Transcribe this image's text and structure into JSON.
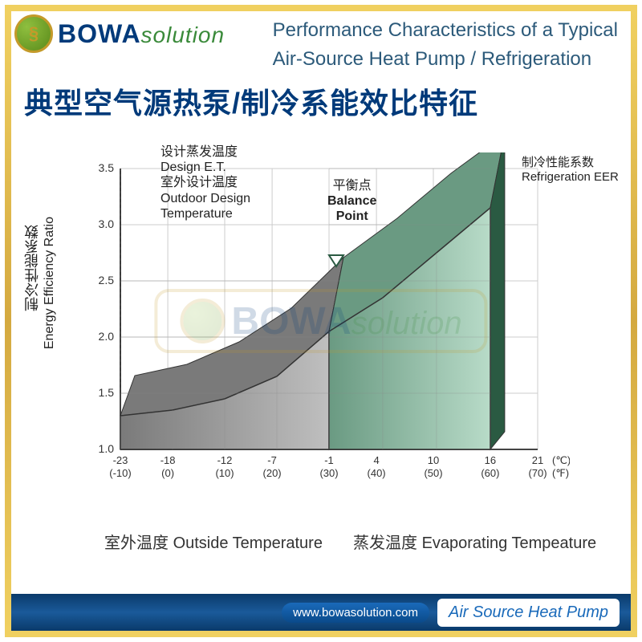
{
  "logo": {
    "brand_a": "BOWA",
    "brand_b": "solution",
    "symbol": "§"
  },
  "header": {
    "en_line1": "Performance Characteristics of a Typical",
    "en_line2": "Air-Source Heat Pump / Refrigeration",
    "cn_title": "典型空气源热泵/制冷系能效比特征"
  },
  "chart": {
    "type": "3d-area",
    "background_color": "#ffffff",
    "grid_color": "#cccccc",
    "axis_color": "#444444",
    "ylabel_cn": "制冷性能系数",
    "ylabel_en": "Energy Efficiency Ratio",
    "ylim": [
      1.0,
      3.5
    ],
    "yticks": [
      1.0,
      1.5,
      2.0,
      2.5,
      3.0,
      3.5
    ],
    "xticks_c": [
      -23,
      -18,
      -12,
      -7,
      -1,
      4,
      10,
      16,
      21
    ],
    "xticks_f": [
      "(-10)",
      "(0)",
      "(10)",
      "(20)",
      "(30)",
      "(40)",
      "(50)",
      "(60)",
      "(70)"
    ],
    "x_unit_c": "(℃)",
    "x_unit_f": "(℉)",
    "series": [
      {
        "name": "left-bar",
        "x_range": [
          -23,
          -1
        ],
        "values": [
          1.3,
          1.35,
          1.45,
          1.65,
          2.05
        ],
        "top_values": [
          1.5,
          1.6,
          1.8,
          2.1,
          2.55
        ],
        "face_color": "#bfbfbf",
        "face_color_dark": "#7a7a7a",
        "side_color": "#5a5a5a"
      },
      {
        "name": "right-bar",
        "x_range": [
          -1,
          16
        ],
        "values": [
          2.05,
          2.35,
          2.75,
          3.15
        ],
        "top_values": [
          2.55,
          2.9,
          3.3,
          3.65
        ],
        "face_color": "#b8dbc8",
        "face_color_dark": "#6a9a82",
        "side_color": "#2a5a42"
      }
    ],
    "depth_offset_x": 18,
    "depth_offset_y": 22
  },
  "annotations": {
    "design_et_cn": "设计蒸发温度",
    "design_et_en": "Design E.T.",
    "outdoor_cn": "室外设计温度",
    "outdoor_en": "Outdoor Design",
    "outdoor_en2": "Temperature",
    "balance_cn": "平衡点",
    "balance_en": "Balance",
    "balance_en2": "Point",
    "eer_cn": "制冷性能系数",
    "eer_en": "Refrigeration EER",
    "xlabel_outside_cn": "室外温度",
    "xlabel_outside_en": "Outside Temperature",
    "xlabel_evap_cn": "蒸发温度",
    "xlabel_evap_en": "Evaporating Tempeature"
  },
  "footer": {
    "url": "www.bowasolution.com",
    "label": "Air Source Heat Pump"
  }
}
